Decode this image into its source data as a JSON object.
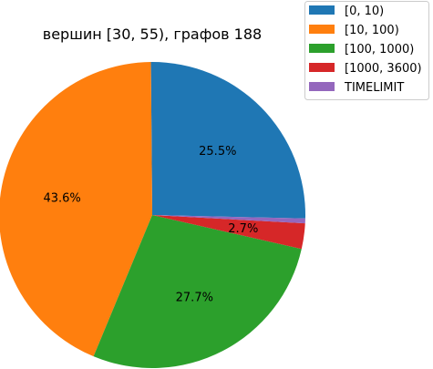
{
  "chart_data": {
    "type": "pie",
    "title": "вершин [30, 55), графов 188",
    "slices": [
      {
        "label": "[0, 10)",
        "value": 25.5,
        "pct_label": "25.5%",
        "color": "#1f77b4"
      },
      {
        "label": "[10, 100)",
        "value": 43.6,
        "pct_label": "43.6%",
        "color": "#ff7f0e"
      },
      {
        "label": "[100, 1000)",
        "value": 27.7,
        "pct_label": "27.7%",
        "color": "#2ca02c"
      },
      {
        "label": "[1000, 3600)",
        "value": 2.7,
        "pct_label": "2.7%",
        "color": "#d62728"
      },
      {
        "label": "TIMELIMIT",
        "value": 0.5,
        "pct_label": "",
        "color": "#9467bd"
      }
    ],
    "legend_position": "top-right"
  }
}
